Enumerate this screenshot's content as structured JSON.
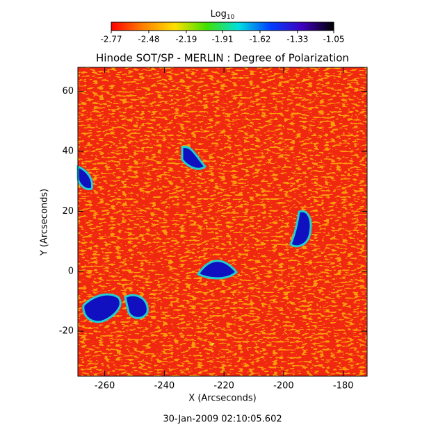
{
  "chart_data": {
    "type": "heatmap",
    "title": "Hinode SOT/SP - MERLIN : Degree of Polarization",
    "x_label": "X (Arcseconds)",
    "y_label": "Y (Arcseconds)",
    "footer": "30-Jan-2009 02:10:05.602",
    "xlim": [
      -269,
      -172
    ],
    "xticks": [
      -260,
      -240,
      -220,
      -200,
      -180
    ],
    "ylim": [
      -35,
      68
    ],
    "yticks": [
      -20,
      0,
      20,
      40,
      60
    ],
    "colorbar": {
      "label_base": "Log",
      "label_subscript": "10",
      "clim": [
        -2.77,
        -1.05
      ],
      "ticks": [
        -2.77,
        -2.48,
        -2.19,
        -1.91,
        -1.62,
        -1.33,
        -1.05
      ],
      "colormap": [
        "#ff0000",
        "#ff8000",
        "#ffe000",
        "#40e000",
        "#00e0e0",
        "#0040ff",
        "#4000c0",
        "#000000"
      ]
    }
  }
}
